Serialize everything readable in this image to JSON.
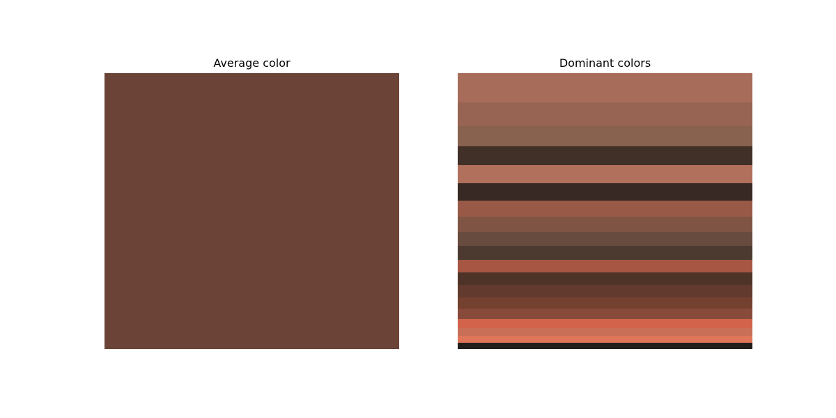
{
  "chart_data": [
    {
      "type": "heatmap",
      "title": "Average color",
      "color": "#6b4337"
    },
    {
      "type": "heatmap",
      "title": "Dominant colors",
      "bands": [
        {
          "color": "#a86c5a",
          "share": 0.105
        },
        {
          "color": "#976352",
          "share": 0.085
        },
        {
          "color": "#88614f",
          "share": 0.074
        },
        {
          "color": "#413028",
          "share": 0.069
        },
        {
          "color": "#b1705b",
          "share": 0.066
        },
        {
          "color": "#382924",
          "share": 0.062
        },
        {
          "color": "#985a47",
          "share": 0.057
        },
        {
          "color": "#7f5445",
          "share": 0.055
        },
        {
          "color": "#674b3e",
          "share": 0.051
        },
        {
          "color": "#4c3a31",
          "share": 0.051
        },
        {
          "color": "#a85644",
          "share": 0.046
        },
        {
          "color": "#4e3428",
          "share": 0.045
        },
        {
          "color": "#623a2e",
          "share": 0.045
        },
        {
          "color": "#74402f",
          "share": 0.04
        },
        {
          "color": "#884b3b",
          "share": 0.038
        },
        {
          "color": "#d4634b",
          "share": 0.033
        },
        {
          "color": "#c96e57",
          "share": 0.028
        },
        {
          "color": "#e07559",
          "share": 0.025
        },
        {
          "color": "#dd9b7f",
          "share": 0.0
        },
        {
          "color": "#231e1a",
          "share": 0.025
        }
      ]
    }
  ]
}
